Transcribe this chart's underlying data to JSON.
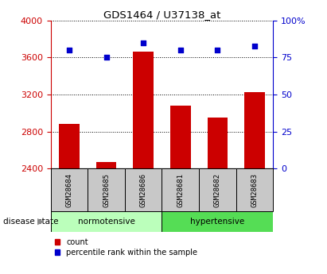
{
  "title": "GDS1464 / U37138_at",
  "samples": [
    "GSM28684",
    "GSM28685",
    "GSM28686",
    "GSM28681",
    "GSM28682",
    "GSM28683"
  ],
  "count_values": [
    2880,
    2470,
    3660,
    3080,
    2950,
    3230
  ],
  "percentile_values": [
    80,
    75,
    85,
    80,
    80,
    83
  ],
  "bar_bottom": 2400,
  "ylim_left": [
    2400,
    4000
  ],
  "ylim_right": [
    0,
    100
  ],
  "yticks_left": [
    2400,
    2800,
    3200,
    3600,
    4000
  ],
  "yticks_right": [
    0,
    25,
    50,
    75,
    100
  ],
  "yticklabels_right": [
    "0",
    "25",
    "50",
    "75",
    "100%"
  ],
  "bar_color": "#cc0000",
  "scatter_color": "#0000cc",
  "group1_label": "normotensive",
  "group2_label": "hypertensive",
  "group1_color": "#bbffbb",
  "group2_color": "#55dd55",
  "group_box_color": "#c8c8c8",
  "disease_state_label": "disease state",
  "legend_count": "count",
  "legend_percentile": "percentile rank within the sample",
  "left_axis_color": "#cc0000",
  "right_axis_color": "#0000cc",
  "bar_width": 0.55,
  "scatter_size": 22
}
